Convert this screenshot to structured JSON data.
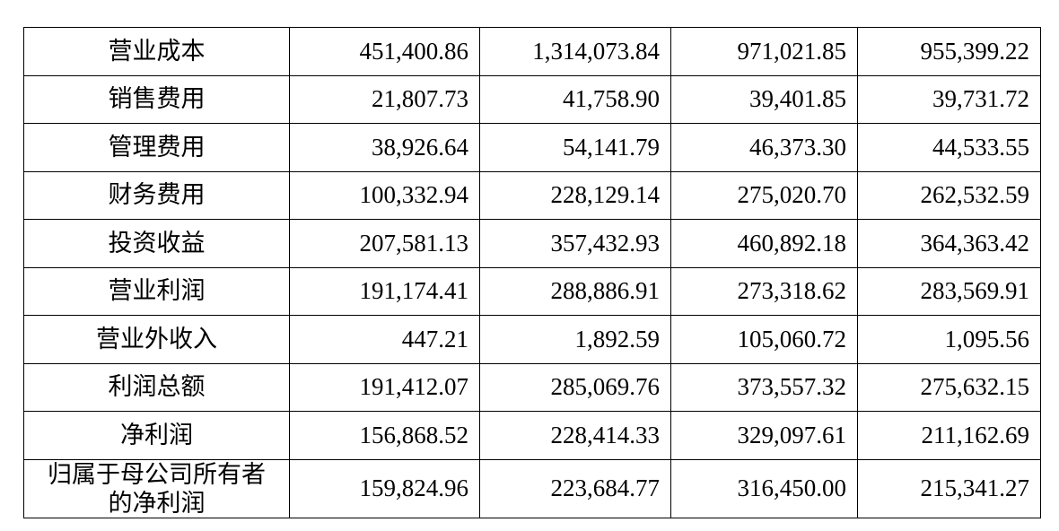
{
  "table": {
    "rows": [
      {
        "label": "营业成本",
        "values": [
          "451,400.86",
          "1,314,073.84",
          "971,021.85",
          "955,399.22"
        ]
      },
      {
        "label": "销售费用",
        "values": [
          "21,807.73",
          "41,758.90",
          "39,401.85",
          "39,731.72"
        ]
      },
      {
        "label": "管理费用",
        "values": [
          "38,926.64",
          "54,141.79",
          "46,373.30",
          "44,533.55"
        ]
      },
      {
        "label": "财务费用",
        "values": [
          "100,332.94",
          "228,129.14",
          "275,020.70",
          "262,532.59"
        ]
      },
      {
        "label": "投资收益",
        "values": [
          "207,581.13",
          "357,432.93",
          "460,892.18",
          "364,363.42"
        ]
      },
      {
        "label": "营业利润",
        "values": [
          "191,174.41",
          "288,886.91",
          "273,318.62",
          "283,569.91"
        ]
      },
      {
        "label": "营业外收入",
        "values": [
          "447.21",
          "1,892.59",
          "105,060.72",
          "1,095.56"
        ]
      },
      {
        "label": "利润总额",
        "values": [
          "191,412.07",
          "285,069.76",
          "373,557.32",
          "275,632.15"
        ]
      },
      {
        "label": "净利润",
        "values": [
          "156,868.52",
          "228,414.33",
          "329,097.61",
          "211,162.69"
        ]
      },
      {
        "label_line1": "归属于母公司所有者",
        "label_line2": "的净利润",
        "values": [
          "159,824.96",
          "223,684.77",
          "316,450.00",
          "215,341.27"
        ]
      }
    ]
  }
}
